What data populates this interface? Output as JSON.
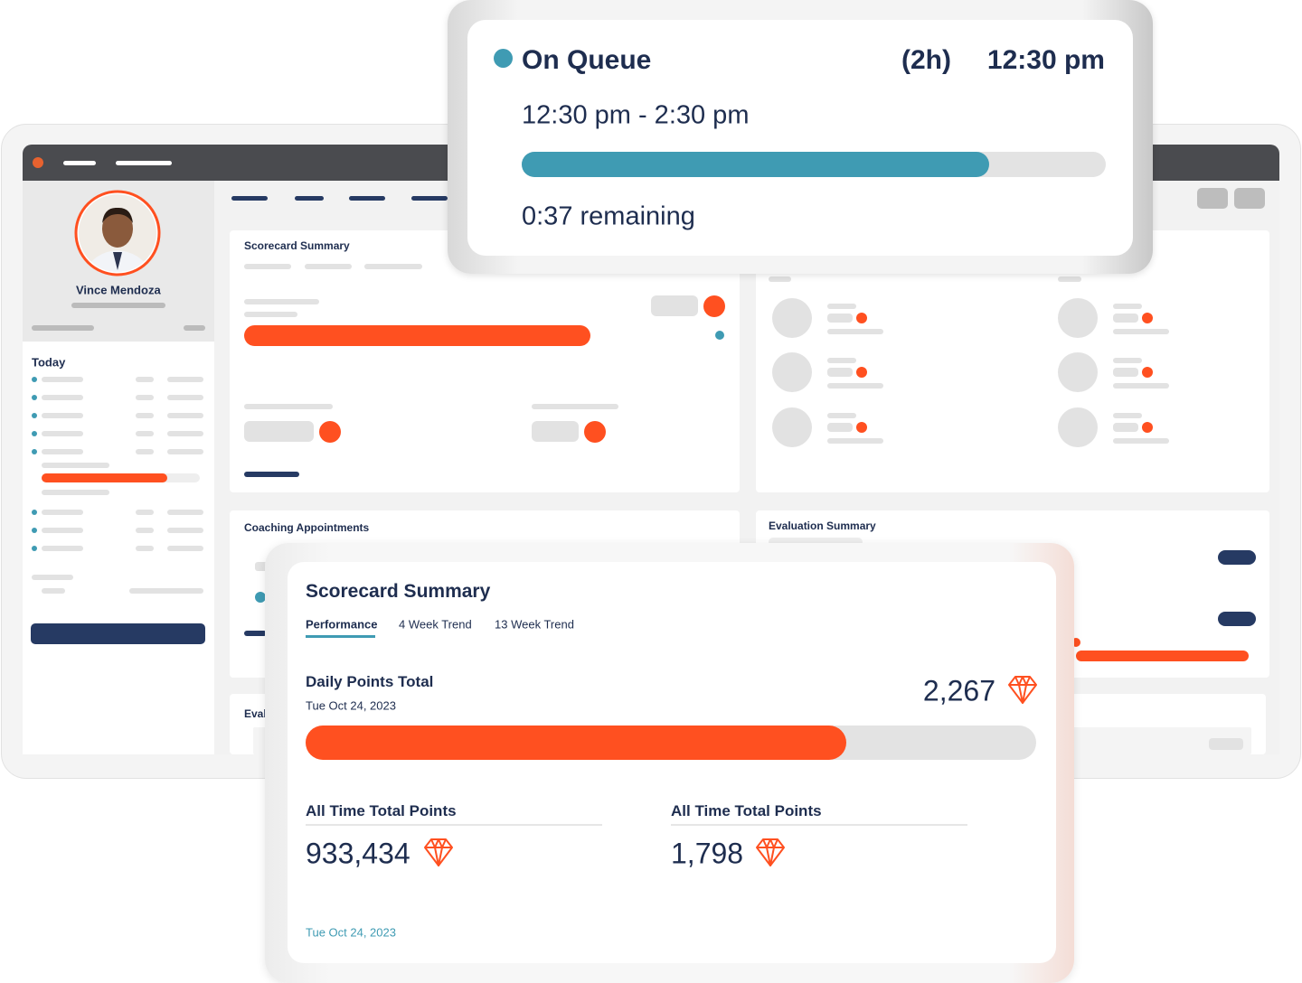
{
  "queue": {
    "status": "On Queue",
    "duration": "(2h)",
    "time": "12:30 pm",
    "range": "12:30 pm - 2:30 pm",
    "progress": 0.8,
    "remaining": "0:37 remaining"
  },
  "sidebar": {
    "name": "Vince Mendoza",
    "today": "Today"
  },
  "background": {
    "scorecard_title": "Scorecard Summary",
    "coaching_title": "Coaching Appointments",
    "evaluation_title": "Evaluation Summary",
    "evaluations_title": "Eval"
  },
  "scorecard": {
    "title": "Scorecard Summary",
    "tabs": [
      "Performance",
      "4 Week Trend",
      "13 Week Trend"
    ],
    "daily_label": "Daily Points Total",
    "daily_date": "Tue Oct 24, 2023",
    "daily_value": "2,267",
    "daily_progress": 0.74,
    "totals": [
      {
        "label": "All Time Total Points",
        "value": "933,434"
      },
      {
        "label": "All Time Total Points",
        "value": "1,798"
      }
    ],
    "footer_date": "Tue Oct 24, 2023"
  }
}
